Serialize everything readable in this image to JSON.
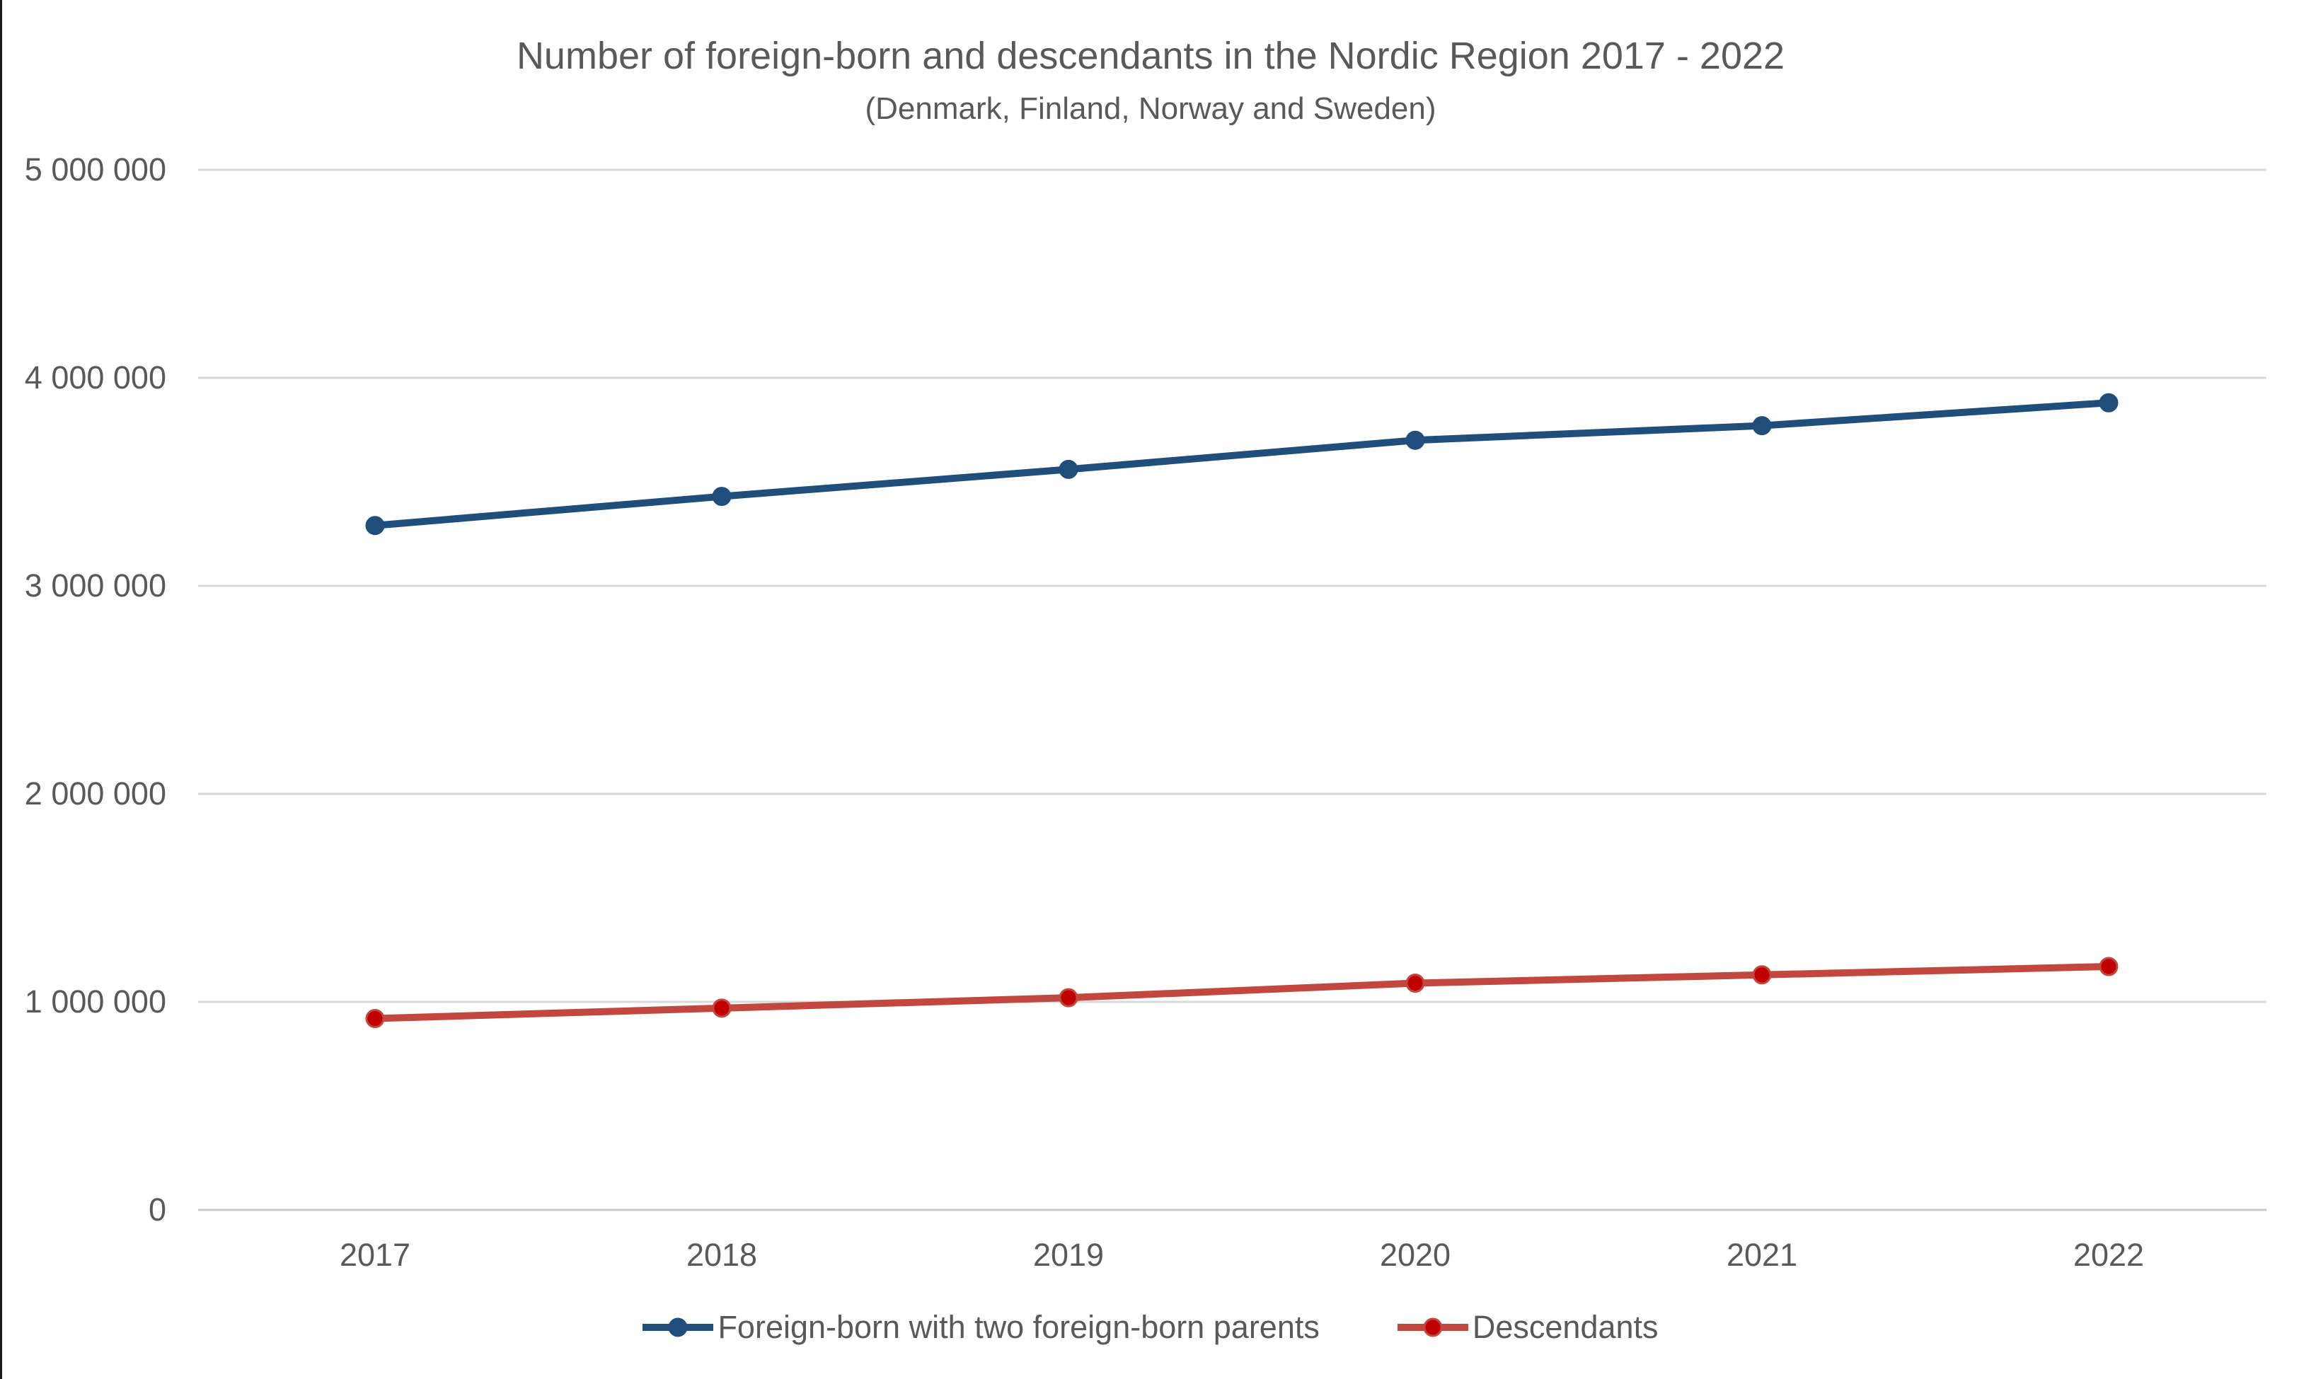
{
  "chart_data": {
    "type": "line",
    "title": "Number of foreign-born and descendants in the Nordic Region 2017 - 2022",
    "subtitle": "(Denmark, Finland, Norway and Sweden)",
    "categories": [
      "2017",
      "2018",
      "2019",
      "2020",
      "2021",
      "2022"
    ],
    "series": [
      {
        "name": "Foreign-born with two foreign-born parents",
        "color": "#1F4E7B",
        "marker_color": "#1F4E7B",
        "values": [
          3290000,
          3430000,
          3560000,
          3700000,
          3770000,
          3880000
        ]
      },
      {
        "name": "Descendants",
        "color": "#C1473F",
        "marker_color": "#C00000",
        "values": [
          920000,
          970000,
          1020000,
          1090000,
          1130000,
          1170000
        ]
      }
    ],
    "xlabel": "",
    "ylabel": "",
    "ylim": [
      0,
      5000000
    ],
    "ytick_step": 1000000,
    "yticks": [
      "0",
      "1 000 000",
      "2 000 000",
      "3 000 000",
      "4 000 000",
      "5 000 000"
    ],
    "grid": "horizontal-major",
    "legend_position": "bottom"
  },
  "style": {
    "text_color": "#595959",
    "gridline_color": "#D9D9D9",
    "axis_line_color": "#C8C8C8",
    "background_color": "#FFFFFF",
    "left_border_color": "#1A1A1A"
  }
}
